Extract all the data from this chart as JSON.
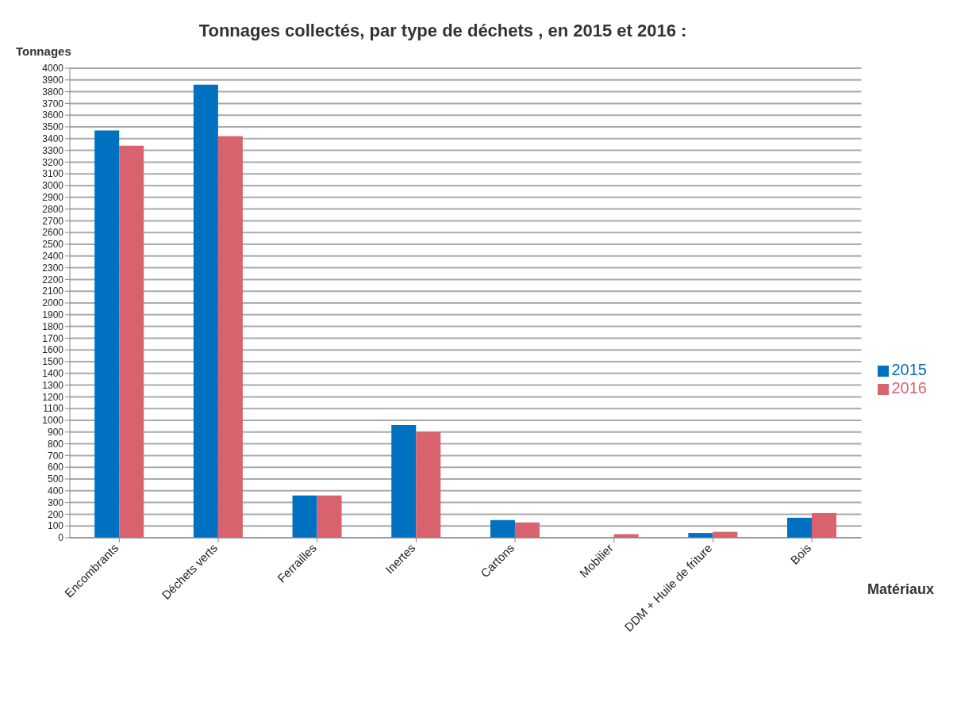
{
  "chart_data": {
    "type": "bar",
    "title": "Tonnages collectés, par type de déchets , en 2015 et 2016 :",
    "xlabel": "Matériaux",
    "ylabel": "Tonnages",
    "categories": [
      "Encombrants",
      "Déchets verts",
      "Ferrailles",
      "Inertes",
      "Cartons",
      "Mobilier",
      "DDM + Huile de friture",
      "Bois"
    ],
    "series": [
      {
        "name": "2015",
        "color": "#0070c0",
        "values": [
          3470,
          3860,
          360,
          960,
          150,
          0,
          40,
          170
        ]
      },
      {
        "name": "2016",
        "color": "#d9626f",
        "values": [
          3340,
          3420,
          360,
          900,
          130,
          30,
          50,
          210
        ]
      }
    ],
    "ylim": [
      0,
      4000
    ],
    "yticks": [
      0,
      100,
      200,
      300,
      400,
      500,
      600,
      700,
      800,
      900,
      1000,
      1100,
      1200,
      1300,
      1400,
      1500,
      1600,
      1700,
      1800,
      1900,
      2000,
      2100,
      2200,
      2300,
      2400,
      2500,
      2600,
      2700,
      2800,
      2900,
      3000,
      3100,
      3200,
      3300,
      3400,
      3500,
      3600,
      3700,
      3800,
      3900,
      4000
    ],
    "grid": "y",
    "legend": "right"
  }
}
